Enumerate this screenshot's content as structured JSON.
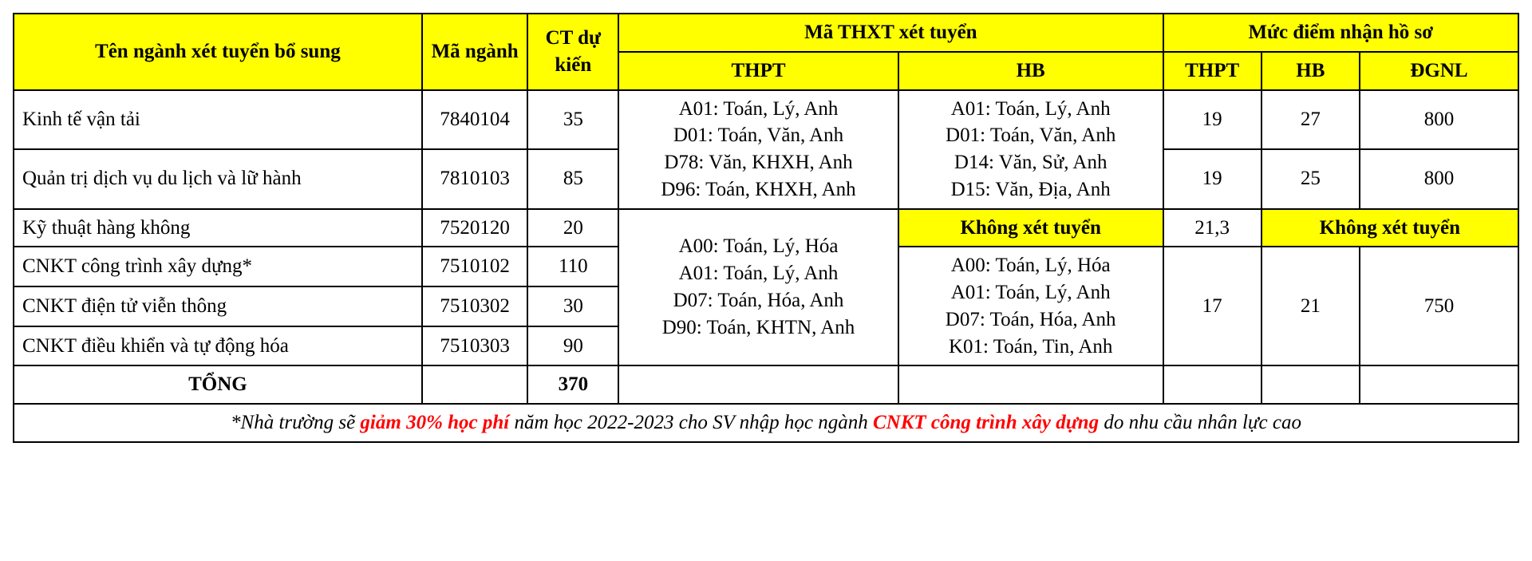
{
  "colors": {
    "header_bg": "#ffff00",
    "highlight_bg": "#ffff00",
    "border": "#000000",
    "text": "#000000",
    "accent_red": "#ff0000",
    "background": "#ffffff"
  },
  "typography": {
    "font_family": "Times New Roman",
    "cell_fontsize_pt": 19,
    "header_fontweight": "bold"
  },
  "headers": {
    "name": "Tên ngành xét tuyển bổ sung",
    "code": "Mã ngành",
    "quota": "CT dự kiến",
    "combo_group": "Mã THXT xét tuyển",
    "combo_thpt": "THPT",
    "combo_hb": "HB",
    "score_group": "Mức điểm nhận hồ sơ",
    "score_thpt": "THPT",
    "score_hb": "HB",
    "score_dgnl": "ĐGNL"
  },
  "rows": {
    "r1": {
      "name": "Kinh tế vận tải",
      "code": "7840104",
      "quota": "35",
      "score_thpt": "19",
      "score_hb": "27",
      "score_dgnl": "800"
    },
    "r2": {
      "name": "Quản trị dịch vụ du lịch và lữ hành",
      "code": "7810103",
      "quota": "85",
      "score_thpt": "19",
      "score_hb": "25",
      "score_dgnl": "800"
    },
    "r3": {
      "name": "Kỹ thuật hàng không",
      "code": "7520120",
      "quota": "20",
      "hb_note": "Không xét tuyển",
      "score_thpt": "21,3",
      "score_note": "Không xét tuyển"
    },
    "r4": {
      "name": "CNKT công trình xây dựng*",
      "code": "7510102",
      "quota": "110"
    },
    "r5": {
      "name": "CNKT điện tử viễn thông",
      "code": "7510302",
      "quota": "30"
    },
    "r6": {
      "name": "CNKT điều khiển và tự động hóa",
      "code": "7510303",
      "quota": "90"
    }
  },
  "combo_blocks": {
    "thpt_top": {
      "l1": "A01: Toán, Lý, Anh",
      "l2": "D01: Toán, Văn, Anh",
      "l3": "D78: Văn, KHXH, Anh",
      "l4": "D96: Toán, KHXH, Anh"
    },
    "hb_top": {
      "l1": "A01: Toán, Lý, Anh",
      "l2": "D01: Toán, Văn, Anh",
      "l3": "D14: Văn, Sử, Anh",
      "l4": "D15: Văn, Địa, Anh"
    },
    "thpt_bottom": {
      "l1": "A00: Toán, Lý, Hóa",
      "l2": "A01: Toán, Lý, Anh",
      "l3": "D07: Toán, Hóa, Anh",
      "l4": "D90: Toán, KHTN, Anh"
    },
    "hb_bottom": {
      "l1": "A00: Toán, Lý, Hóa",
      "l2": "A01: Toán, Lý, Anh",
      "l3": "D07: Toán, Hóa, Anh",
      "l4": "K01: Toán, Tin, Anh"
    }
  },
  "bottom_scores": {
    "thpt": "17",
    "hb": "21",
    "dgnl": "750"
  },
  "total": {
    "label": "TỔNG",
    "value": "370"
  },
  "footnote": {
    "pre": "*Nhà trường sẽ ",
    "red1": "giảm 30% học phí",
    "mid": " năm học 2022-2023 cho SV nhập học ngành ",
    "red2": "CNKT công trình xây dựng",
    "post": " do nhu cầu nhân lực cao"
  }
}
